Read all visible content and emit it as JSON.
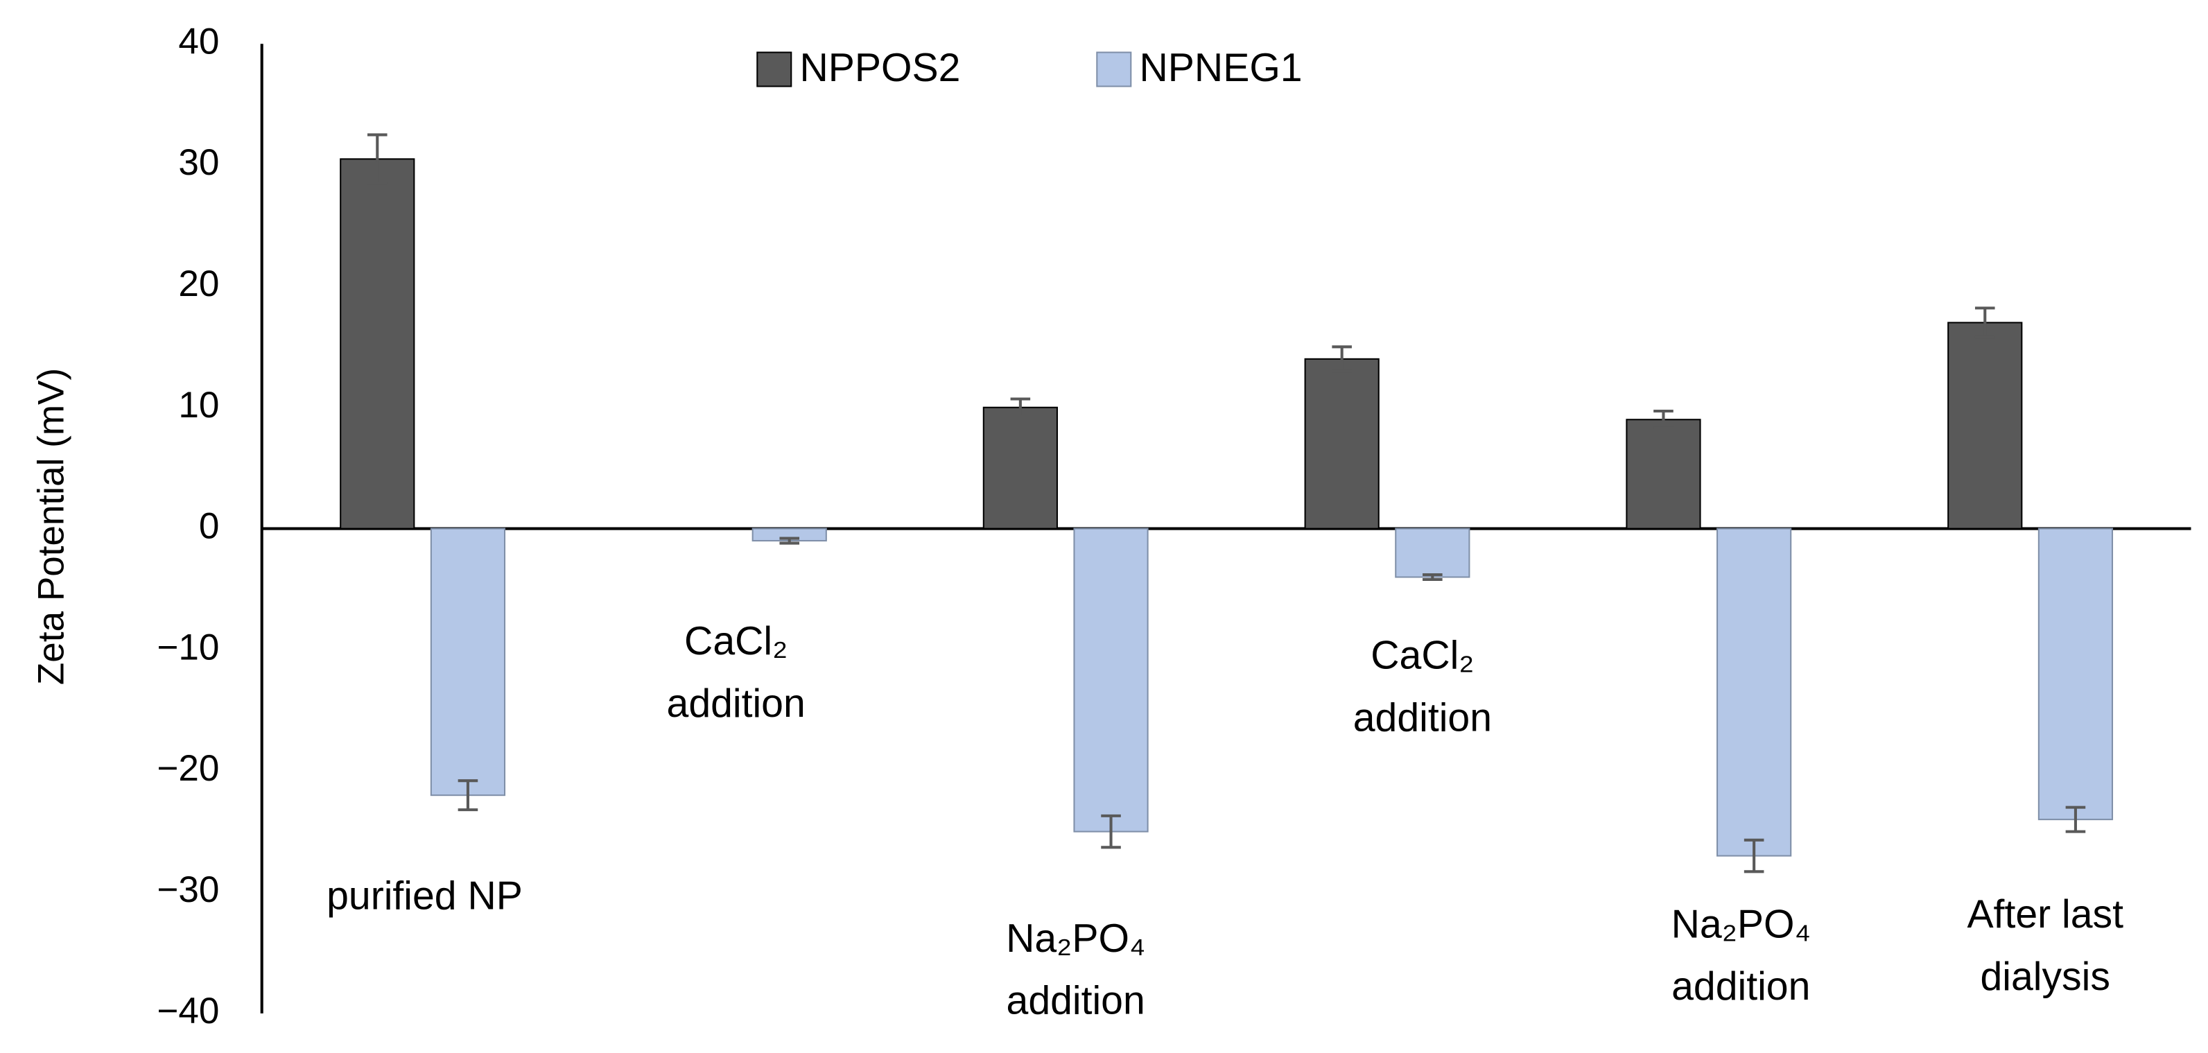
{
  "chart_data": {
    "type": "bar",
    "y_label": "Zeta Potential (mV)",
    "categories": [
      [
        "purified NP"
      ],
      [
        "CaCl₂",
        "addition"
      ],
      [
        "Na₂PO₄",
        "addition"
      ],
      [
        "CaCl₂",
        "addition"
      ],
      [
        "Na₂PO₄",
        "addition"
      ],
      [
        "After last",
        "dialysis"
      ]
    ],
    "series": [
      {
        "name": "NPPOS2",
        "color": "#595959",
        "values": [
          30.5,
          null,
          10,
          14,
          9,
          17
        ],
        "errors": [
          2,
          null,
          0.7,
          1,
          0.7,
          1.2
        ]
      },
      {
        "name": "NPNEG1",
        "color": "#b4c7e7",
        "values": [
          -22,
          -1,
          -25,
          -4,
          -27,
          -24
        ],
        "errors": [
          1.2,
          0.2,
          1.3,
          0.2,
          1.3,
          1
        ]
      }
    ],
    "ylim": [
      -40,
      40
    ],
    "yticks": [
      {
        "value": -40,
        "label": "−40"
      },
      {
        "value": -30,
        "label": "−30"
      },
      {
        "value": -20,
        "label": "−20"
      },
      {
        "value": -10,
        "label": "−10"
      },
      0,
      10,
      20,
      30,
      40
    ],
    "legend": "top"
  }
}
